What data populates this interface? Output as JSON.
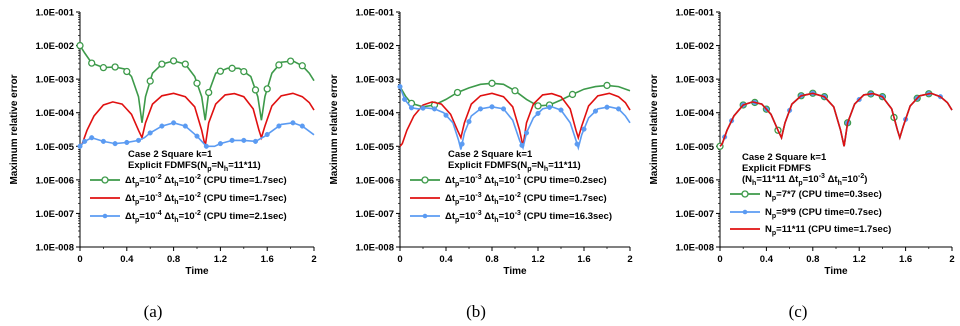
{
  "chart_data": [
    {
      "type": "line",
      "caption": "(a)",
      "xlabel": "Time",
      "ylabel": "Maximum relative error",
      "xlim": [
        0,
        2
      ],
      "ylim": [
        1e-08,
        0.1
      ],
      "yscale": "log",
      "xticks": [
        "0",
        "0.4",
        "0.8",
        "1.2",
        "1.6",
        "2"
      ],
      "yticks": [
        "1.0E-008",
        "1.0E-007",
        "1.0E-006",
        "1.0E-005",
        "1.0E-004",
        "1.0E-003",
        "1.0E-002",
        "1.0E-001"
      ],
      "annotation": [
        "Case 2 Square k=1",
        "Explicit FDMFS(Np=Nh=11*11)"
      ],
      "colors": {
        "green": "#3d9a4a",
        "red": "#e01010",
        "blue": "#5b9bf2"
      },
      "series": [
        {
          "name": "Δtp=10⁻² Δth=10⁻² (CPU time=1.7sec)",
          "color": "#3d9a4a",
          "marker": "circle",
          "x": [
            0,
            0.04,
            0.1,
            0.2,
            0.3,
            0.38,
            0.44,
            0.5,
            0.53,
            0.56,
            0.62,
            0.7,
            0.8,
            0.9,
            0.98,
            1.04,
            1.07,
            1.1,
            1.16,
            1.26,
            1.36,
            1.46,
            1.52,
            1.55,
            1.58,
            1.64,
            1.72,
            1.82,
            1.9,
            1.96,
            2.0
          ],
          "y": [
            0.01,
            0.006,
            0.003,
            0.0022,
            0.0023,
            0.002,
            0.0012,
            0.0003,
            5e-05,
            0.0003,
            0.0015,
            0.0028,
            0.0035,
            0.0028,
            0.0012,
            0.0003,
            6e-05,
            0.0004,
            0.0015,
            0.0021,
            0.0021,
            0.0012,
            0.0003,
            6e-05,
            0.0003,
            0.0015,
            0.0032,
            0.0035,
            0.0025,
            0.0015,
            0.0009
          ],
          "marker_x": [
            0,
            0.1,
            0.2,
            0.3,
            0.4,
            0.6,
            0.7,
            0.8,
            0.9,
            1.0,
            1.1,
            1.2,
            1.3,
            1.4,
            1.5,
            1.6,
            1.7,
            1.8,
            1.9
          ]
        },
        {
          "name": "Δtp=10⁻³ Δth=10⁻² (CPU time=1.7sec)",
          "color": "#e01010",
          "marker": "none",
          "x": [
            0,
            0.02,
            0.06,
            0.12,
            0.2,
            0.28,
            0.36,
            0.44,
            0.5,
            0.53,
            0.56,
            0.62,
            0.7,
            0.8,
            0.9,
            0.98,
            1.04,
            1.07,
            1.1,
            1.16,
            1.24,
            1.32,
            1.4,
            1.48,
            1.53,
            1.55,
            1.58,
            1.64,
            1.72,
            1.82,
            1.9,
            1.96,
            2.0
          ],
          "y": [
            1e-05,
            1.2e-05,
            3e-05,
            8e-05,
            0.00017,
            0.00021,
            0.00018,
            9e-05,
            3e-05,
            1.8e-05,
            5e-05,
            0.00018,
            0.00032,
            0.00038,
            0.0003,
            0.00015,
            3e-05,
            1e-05,
            5e-05,
            0.00018,
            0.00034,
            0.00037,
            0.0003,
            0.00013,
            3e-05,
            1.8e-05,
            4e-05,
            0.00016,
            0.00032,
            0.00038,
            0.0003,
            0.0002,
            0.00012
          ]
        },
        {
          "name": "Δtp=10⁻⁴ Δth=10⁻² (CPU time=2.1sec)",
          "color": "#5b9bf2",
          "marker": "dot",
          "x": [
            0,
            0.04,
            0.1,
            0.2,
            0.3,
            0.4,
            0.5,
            0.55,
            0.6,
            0.7,
            0.8,
            0.9,
            1.0,
            1.08,
            1.15,
            1.2,
            1.3,
            1.4,
            1.5,
            1.58,
            1.65,
            1.72,
            1.82,
            1.9,
            2.0
          ],
          "y": [
            1e-05,
            1.4e-05,
            1.8e-05,
            1.4e-05,
            1.2e-05,
            1.3e-05,
            1.5e-05,
            1.8e-05,
            2.5e-05,
            4e-05,
            5e-05,
            4e-05,
            2e-05,
            1e-05,
            1e-05,
            1.2e-05,
            1.5e-05,
            1.5e-05,
            1.4e-05,
            2e-05,
            3e-05,
            4.5e-05,
            5e-05,
            4e-05,
            2.2e-05
          ],
          "marker_x": [
            0,
            0.04,
            0.1,
            0.2,
            0.3,
            0.4,
            0.5,
            0.6,
            0.7,
            0.8,
            0.9,
            1.0,
            1.08,
            1.2,
            1.3,
            1.4,
            1.5,
            1.6,
            1.7,
            1.82,
            1.9
          ]
        }
      ]
    },
    {
      "type": "line",
      "caption": "(b)",
      "xlabel": "Time",
      "ylabel": "Maximum relative error",
      "xlim": [
        0,
        2
      ],
      "ylim": [
        1e-08,
        0.1
      ],
      "yscale": "log",
      "xticks": [
        "0",
        "0.4",
        "0.8",
        "1.2",
        "1.6",
        "2"
      ],
      "yticks": [
        "1.0E-008",
        "1.0E-007",
        "1.0E-006",
        "1.0E-005",
        "1.0E-004",
        "1.0E-003",
        "1.0E-002",
        "1.0E-001"
      ],
      "annotation": [
        "Case 2 Square k=1",
        "Explicit FDMFS(Np=Nh=11*11)"
      ],
      "series": [
        {
          "name": "Δtp=10⁻³ Δth=10⁻¹ (CPU time=0.2sec)",
          "color": "#3d9a4a",
          "marker": "circle",
          "x": [
            0,
            0.05,
            0.1,
            0.2,
            0.3,
            0.4,
            0.5,
            0.6,
            0.7,
            0.8,
            0.9,
            1.0,
            1.1,
            1.2,
            1.3,
            1.4,
            1.5,
            1.6,
            1.7,
            1.8,
            1.9,
            2.0
          ],
          "y": [
            0.0006,
            0.0003,
            0.00019,
            0.00015,
            0.00017,
            0.00025,
            0.0004,
            0.00055,
            0.0007,
            0.00075,
            0.0007,
            0.00045,
            0.00025,
            0.00016,
            0.00017,
            0.00024,
            0.00035,
            0.0005,
            0.0006,
            0.00065,
            0.0006,
            0.00045
          ],
          "marker_x": [
            0.1,
            0.3,
            0.5,
            0.8,
            1.0,
            1.2,
            1.3,
            1.5,
            1.8
          ]
        },
        {
          "name": "Δtp=10⁻³ Δth=10⁻² (CPU time=1.7sec)",
          "color": "#e01010",
          "marker": "none",
          "x": [
            0,
            0.02,
            0.06,
            0.12,
            0.2,
            0.28,
            0.36,
            0.44,
            0.5,
            0.53,
            0.56,
            0.62,
            0.7,
            0.8,
            0.9,
            0.98,
            1.04,
            1.07,
            1.1,
            1.16,
            1.24,
            1.32,
            1.4,
            1.48,
            1.53,
            1.55,
            1.58,
            1.64,
            1.72,
            1.82,
            1.9,
            1.96,
            2.0
          ],
          "y": [
            1e-05,
            1.2e-05,
            3e-05,
            8e-05,
            0.00017,
            0.00021,
            0.00018,
            9e-05,
            3e-05,
            1.8e-05,
            5e-05,
            0.00018,
            0.00032,
            0.00038,
            0.0003,
            0.00015,
            3e-05,
            1e-05,
            5e-05,
            0.00018,
            0.00034,
            0.00037,
            0.0003,
            0.00013,
            3e-05,
            1.8e-05,
            4e-05,
            0.00016,
            0.00032,
            0.00038,
            0.0003,
            0.0002,
            0.00012
          ]
        },
        {
          "name": "Δtp=10⁻³ Δth=10⁻³ (CPU time=16.3sec)",
          "color": "#5b9bf2",
          "marker": "dot",
          "x": [
            0,
            0.04,
            0.1,
            0.16,
            0.22,
            0.3,
            0.38,
            0.46,
            0.51,
            0.53,
            0.56,
            0.62,
            0.7,
            0.8,
            0.9,
            0.98,
            1.04,
            1.07,
            1.1,
            1.16,
            1.24,
            1.32,
            1.4,
            1.48,
            1.53,
            1.55,
            1.58,
            1.64,
            1.72,
            1.82,
            1.9,
            1.96,
            2.0
          ],
          "y": [
            0.0006,
            0.00025,
            0.00014,
            0.00013,
            0.00014,
            0.00013,
            0.0001,
            5e-05,
            1.5e-05,
            8e-06,
            2.5e-05,
            8e-05,
            0.00013,
            0.00015,
            0.00013,
            6e-05,
            1.5e-05,
            9e-06,
            2.5e-05,
            7e-05,
            0.00013,
            0.00015,
            0.00012,
            5e-05,
            1.5e-05,
            9e-06,
            2.2e-05,
            7e-05,
            0.00013,
            0.00015,
            0.00013,
            8e-05,
            5e-05
          ],
          "marker_x": [
            0,
            0.04,
            0.1,
            0.2,
            0.3,
            0.4,
            0.54,
            0.6,
            0.7,
            0.8,
            0.9,
            1.06,
            1.1,
            1.2,
            1.3,
            1.4,
            1.54,
            1.6,
            1.7,
            1.8,
            1.9
          ]
        }
      ]
    },
    {
      "type": "line",
      "caption": "(c)",
      "xlabel": "Time",
      "ylabel": "Maximum relative error",
      "xlim": [
        0,
        2
      ],
      "ylim": [
        1e-08,
        0.1
      ],
      "yscale": "log",
      "xticks": [
        "0",
        "0.4",
        "0.8",
        "1.2",
        "1.6",
        "2"
      ],
      "yticks": [
        "1.0E-008",
        "1.0E-007",
        "1.0E-006",
        "1.0E-005",
        "1.0E-004",
        "1.0E-003",
        "1.0E-002",
        "1.0E-001"
      ],
      "annotation": [
        "Case 2 Square k=1",
        "Explicit FDMFS",
        "(Nh=11*11 Δtp=10⁻³ Δth=10⁻²)"
      ],
      "series": [
        {
          "name": "Np=7*7      (CPU time=0.3sec)",
          "color": "#3d9a4a",
          "marker": "circle",
          "x": [
            0,
            0.02,
            0.06,
            0.12,
            0.2,
            0.28,
            0.36,
            0.44,
            0.5,
            0.53,
            0.56,
            0.62,
            0.7,
            0.8,
            0.9,
            0.98,
            1.04,
            1.07,
            1.1,
            1.16,
            1.24,
            1.32,
            1.4,
            1.48,
            1.53,
            1.55,
            1.58,
            1.64,
            1.72,
            1.82,
            1.9,
            1.96,
            2.0
          ],
          "y": [
            1e-05,
            1.2e-05,
            3e-05,
            8e-05,
            0.00017,
            0.00021,
            0.00018,
            9e-05,
            3e-05,
            1.8e-05,
            5e-05,
            0.00018,
            0.00032,
            0.00038,
            0.0003,
            0.00015,
            3e-05,
            1e-05,
            5e-05,
            0.00018,
            0.00034,
            0.00037,
            0.0003,
            0.00013,
            3e-05,
            1.8e-05,
            4e-05,
            0.00016,
            0.00032,
            0.00038,
            0.0003,
            0.0002,
            0.00012
          ],
          "marker_x": [
            0.0,
            0.2,
            0.3,
            0.4,
            0.5,
            0.7,
            0.8,
            0.9,
            1.1,
            1.3,
            1.4,
            1.5,
            1.7,
            1.8
          ]
        },
        {
          "name": "Np=9*9      (CPU time=0.7sec)",
          "color": "#5b9bf2",
          "marker": "dot",
          "x": [
            0,
            0.02,
            0.06,
            0.12,
            0.2,
            0.28,
            0.36,
            0.44,
            0.5,
            0.53,
            0.56,
            0.62,
            0.7,
            0.8,
            0.9,
            0.98,
            1.04,
            1.07,
            1.1,
            1.16,
            1.24,
            1.32,
            1.4,
            1.48,
            1.53,
            1.55,
            1.58,
            1.64,
            1.72,
            1.82,
            1.9,
            1.96,
            2.0
          ],
          "y": [
            1e-05,
            1.2e-05,
            3e-05,
            8e-05,
            0.00017,
            0.00021,
            0.00018,
            9e-05,
            3e-05,
            1.8e-05,
            5e-05,
            0.00018,
            0.00032,
            0.00038,
            0.0003,
            0.00015,
            3e-05,
            1e-05,
            5e-05,
            0.00018,
            0.00034,
            0.00037,
            0.0003,
            0.00013,
            3e-05,
            1.8e-05,
            4e-05,
            0.00016,
            0.00032,
            0.00038,
            0.0003,
            0.0002,
            0.00012
          ],
          "marker_x": [
            0.04,
            0.1,
            0.2,
            0.3,
            0.4,
            0.6,
            0.7,
            0.8,
            0.9,
            1.1,
            1.2,
            1.3,
            1.4,
            1.6,
            1.7,
            1.8,
            1.9
          ]
        },
        {
          "name": "Np=11*11  (CPU time=1.7sec)",
          "color": "#e01010",
          "marker": "none",
          "x": [
            0,
            0.02,
            0.06,
            0.12,
            0.2,
            0.28,
            0.36,
            0.44,
            0.5,
            0.53,
            0.56,
            0.62,
            0.7,
            0.8,
            0.9,
            0.98,
            1.04,
            1.07,
            1.1,
            1.16,
            1.24,
            1.32,
            1.4,
            1.48,
            1.53,
            1.55,
            1.58,
            1.64,
            1.72,
            1.82,
            1.9,
            1.96,
            2.0
          ],
          "y": [
            1e-05,
            1.2e-05,
            3e-05,
            8e-05,
            0.00017,
            0.00021,
            0.00018,
            9e-05,
            3e-05,
            1.8e-05,
            5e-05,
            0.00018,
            0.00032,
            0.00038,
            0.0003,
            0.00015,
            3e-05,
            1e-05,
            5e-05,
            0.00018,
            0.00034,
            0.00037,
            0.0003,
            0.00013,
            3e-05,
            1.8e-05,
            4e-05,
            0.00016,
            0.00032,
            0.00038,
            0.0003,
            0.0002,
            0.00012
          ]
        }
      ]
    }
  ]
}
